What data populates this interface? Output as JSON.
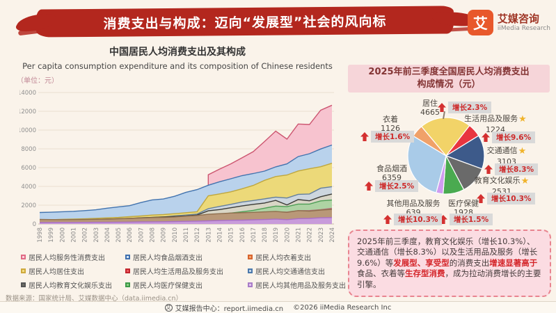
{
  "header": {
    "title": "消费支出与构成：迈向“发展型”社会的风向标",
    "logo": {
      "char": "艾",
      "name": "艾媒咨询",
      "sub": "iiMedia Research"
    }
  },
  "left_chart": {
    "legend": [
      {
        "label": "居民人均服务性消费支出",
        "fill": "#f9d3dc",
        "border": "#e06a85"
      },
      {
        "label": "居民人均食品烟酒支出",
        "fill": "#d5e4f3",
        "border": "#3f6fae"
      },
      {
        "label": "居民人均衣着支出",
        "fill": "#f3a36e",
        "border": "#d8642e"
      },
      {
        "label": "居民人均居住支出",
        "fill": "#f2dd85",
        "border": "#cfa93c"
      },
      {
        "label": "居民人均生活用品及服务支出",
        "fill": "#ef5a60",
        "border": "#c2262e"
      },
      {
        "label": "居民人均交通通信支出",
        "fill": "#c4d6e8",
        "border": "#4a78ac"
      },
      {
        "label": "居民人均教育文化娱乐支出",
        "fill": "#6e6e66",
        "border": "#26262            2"
      },
      {
        "label": "居民人均医疗保健支出",
        "fill": "#8ecc86",
        "border": "#3c9a48"
      },
      {
        "label": "居民人均其他用品及服务支出",
        "fill": "#e2c2ef",
        "border": "#a87cc8"
      }
    ]
  },
  "chart_data": [
    {
      "type": "area",
      "title": "中国居民人均消费支出及其构成",
      "subtitle": "Per capita consumption expenditure and its composition of Chinese residents",
      "unit": "（单位：元）",
      "ylabel": "元",
      "ylim": [
        0,
        14000
      ],
      "ytick_step": 2000,
      "grid": true,
      "legend_position": "bottom",
      "years": [
        1998,
        1999,
        2000,
        2001,
        2002,
        2003,
        2004,
        2005,
        2006,
        2007,
        2008,
        2009,
        2010,
        2011,
        2012,
        2013,
        2014,
        2015,
        2016,
        2017,
        2018,
        2019,
        2020,
        2021,
        2022,
        2023,
        2024
      ],
      "series": [
        {
          "name": "居民人均服务性消费支出",
          "fill": "#f7c3cf",
          "stroke": "#cc5570",
          "values": [
            null,
            null,
            null,
            null,
            null,
            null,
            null,
            null,
            null,
            null,
            null,
            null,
            null,
            null,
            null,
            5246,
            5842,
            6403,
            7041,
            7706,
            8781,
            9886,
            9037,
            10645,
            10590,
            12114,
            12648
          ]
        },
        {
          "name": "居民人均食品烟酒支出",
          "fill": "#b9d2ec",
          "stroke": "#4273ae",
          "values": [
            1220,
            1250,
            1300,
            1350,
            1420,
            1510,
            1680,
            1820,
            1950,
            2280,
            2560,
            2660,
            2950,
            3360,
            3660,
            4127,
            4494,
            4814,
            5151,
            5374,
            5631,
            6084,
            6397,
            7178,
            7481,
            7983,
            8411
          ]
        },
        {
          "name": "居民人均居住支出",
          "fill": "#ecd979",
          "stroke": "#bfa73e",
          "values": [
            430,
            450,
            500,
            520,
            550,
            600,
            650,
            700,
            780,
            850,
            950,
            1000,
            1100,
            1200,
            1300,
            2999,
            3201,
            3419,
            3746,
            4107,
            4647,
            5055,
            5215,
            5641,
            5882,
            6095,
            6463
          ]
        },
        {
          "name": "居民人均交通通信支出",
          "fill": "#cdd6de",
          "stroke": "#637f9d",
          "values": [
            160,
            180,
            220,
            250,
            300,
            350,
            400,
            480,
            550,
            650,
            700,
            750,
            850,
            950,
            1050,
            1627,
            1869,
            2087,
            2338,
            2499,
            2675,
            2862,
            2762,
            3156,
            3195,
            3809,
            3969
          ]
        },
        {
          "name": "居民人均教育文化娱乐支出",
          "fill": "#d9d6c6",
          "stroke": "#3a3a35",
          "values": [
            300,
            330,
            380,
            420,
            450,
            480,
            520,
            560,
            600,
            650,
            700,
            750,
            800,
            850,
            950,
            1398,
            1536,
            1723,
            1915,
            2086,
            2226,
            2513,
            2032,
            2599,
            2469,
            2904,
            3189
          ]
        },
        {
          "name": "居民人均医疗保健支出",
          "fill": "#aed3a4",
          "stroke": "#4e9e55",
          "values": [
            200,
            230,
            270,
            300,
            330,
            360,
            400,
            430,
            470,
            500,
            550,
            600,
            650,
            700,
            800,
            912,
            1045,
            1165,
            1307,
            1451,
            1685,
            1902,
            1843,
            2115,
            2120,
            2460,
            2547
          ]
        },
        {
          "name": "居民人均生活用品及服务支出",
          "fill": "#cf9fa6",
          "stroke": "#b3707c",
          "values": [
            350,
            340,
            330,
            330,
            340,
            350,
            360,
            380,
            400,
            430,
            450,
            470,
            500,
            560,
            620,
            806,
            890,
            951,
            1044,
            1121,
            1223,
            1281,
            1260,
            1423,
            1432,
            1526,
            1666
          ]
        },
        {
          "name": "居民人均衣着支出",
          "fill": "#b99878",
          "stroke": "#8f6f4e",
          "values": [
            480,
            470,
            460,
            470,
            480,
            500,
            520,
            550,
            590,
            640,
            680,
            700,
            750,
            830,
            900,
            1027,
            1099,
            1164,
            1203,
            1238,
            1289,
            1338,
            1238,
            1419,
            1365,
            1479,
            1554
          ]
        },
        {
          "name": "居民人均其他用品及服务支出",
          "fill": "#c89bdb",
          "stroke": "#a86fc5",
          "values": [
            150,
            155,
            160,
            165,
            170,
            175,
            180,
            190,
            200,
            220,
            230,
            240,
            260,
            280,
            300,
            337,
            371,
            389,
            406,
            447,
            477,
            524,
            462,
            569,
            595,
            658,
            683
          ]
        }
      ]
    },
    {
      "type": "pie",
      "title": "2025年前三季度全国居民人均消费支出构成情况（元）",
      "start_angle_deg": -40,
      "slices": [
        {
          "label": "居住",
          "value": 4665,
          "growth": "增长2.3%",
          "star": false,
          "color": "#f2d368"
        },
        {
          "label": "生活用品及服务",
          "value": 1224,
          "growth": "增长9.6%",
          "star": true,
          "color": "#e8353f"
        },
        {
          "label": "交通通信",
          "value": 3103,
          "growth": "增长8.3%",
          "star": true,
          "color": "#3d5a8a"
        },
        {
          "label": "教育文化娱乐",
          "value": 2531,
          "growth": "增长10.3%",
          "star": true,
          "color": "#6a6a6a"
        },
        {
          "label": "医疗保健",
          "value": 1928,
          "growth": "增长1.5%",
          "star": false,
          "color": "#4aaa50"
        },
        {
          "label": "其他用品及服务",
          "value": 639,
          "growth": "增长10.3%",
          "star": false,
          "color": "#cf9cf0"
        },
        {
          "label": "食品烟酒",
          "value": 6359,
          "growth": "增长2.5%",
          "star": false,
          "color": "#a9cbe8"
        },
        {
          "label": "衣着",
          "value": 1126,
          "growth": "增长1.6%",
          "star": false,
          "color": "#f0a169"
        }
      ]
    }
  ],
  "right_panel": {
    "title_line1": "2025年前三季度全国居民人均消费支出",
    "title_line2": "构成情况（元）"
  },
  "analysis": {
    "segments": [
      {
        "text": "2025年前三季度，教育文化娱乐（增长10.3%）、交通通信（增长8.3%）以及生活用品及服务（增长9.6%）等",
        "red": false
      },
      {
        "text": "发展型、享受型",
        "red": true
      },
      {
        "text": "的消费支出",
        "red": false
      },
      {
        "text": "增速显著高于",
        "red": true
      },
      {
        "text": "食品、衣着等",
        "red": false
      },
      {
        "text": "生存型消费",
        "red": true
      },
      {
        "text": "，成为拉动消费增长的主要引擎。",
        "red": false
      }
    ]
  },
  "footer": {
    "source": "数据来源：国家统计局、艾媒数据中心（data.iimedia.cn）",
    "center_label": "艾媒报告中心：report.iimedia.cn",
    "copyright": "©2026  iiMedia Research Inc"
  }
}
